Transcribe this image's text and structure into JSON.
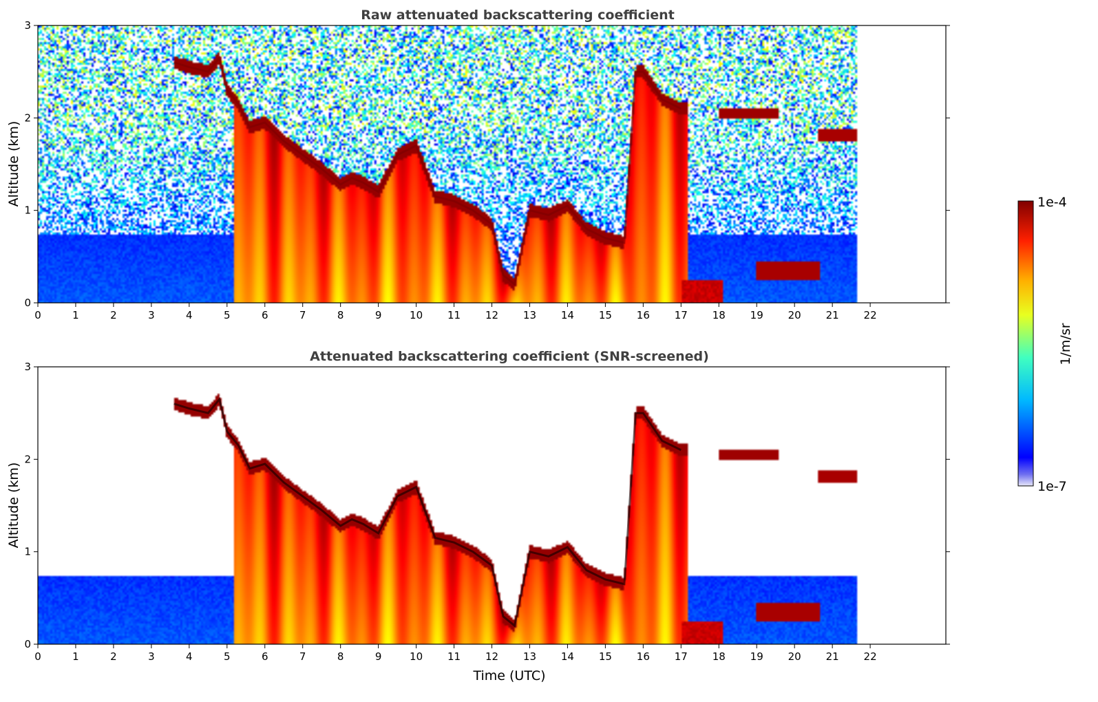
{
  "chart_data": [
    {
      "type": "heatmap",
      "title": "Raw attenuated backscattering coefficient",
      "xlabel": "",
      "ylabel": "Altitude (km)",
      "xlim": [
        0,
        24
      ],
      "ylim": [
        0,
        3
      ],
      "x_ticks": [
        0,
        1,
        2,
        3,
        4,
        5,
        6,
        7,
        8,
        9,
        10,
        11,
        12,
        13,
        14,
        15,
        16,
        17,
        18,
        19,
        20,
        21,
        22
      ],
      "y_ticks": [
        0,
        1,
        2,
        3
      ],
      "data_end_time": 21.65,
      "screened": false,
      "cloud_layer": {
        "time": [
          3.6,
          4.0,
          4.5,
          4.8,
          5.0,
          5.3,
          5.6,
          6.0,
          6.5,
          7.0,
          7.5,
          8.0,
          8.3,
          8.6,
          9.0,
          9.5,
          10.0,
          10.5,
          11.0,
          11.5,
          12.0,
          12.3,
          12.6,
          13.0,
          13.5,
          14.0,
          14.5,
          15.0,
          15.5,
          15.8,
          16.0,
          16.5,
          17.0
        ],
        "altitude_km": [
          2.6,
          2.55,
          2.5,
          2.65,
          2.3,
          2.15,
          1.9,
          1.95,
          1.75,
          1.6,
          1.45,
          1.28,
          1.35,
          1.3,
          1.2,
          1.6,
          1.7,
          1.15,
          1.1,
          1.0,
          0.85,
          0.3,
          0.2,
          1.0,
          0.95,
          1.05,
          0.8,
          0.7,
          0.65,
          2.5,
          2.5,
          2.2,
          2.1
        ]
      },
      "upper_cloud": {
        "time": [
          18.0,
          19.6
        ],
        "altitude_km": 2.05
      },
      "late_cloud": {
        "time": [
          20.6,
          21.65
        ],
        "altitude_km": 1.82
      },
      "low_layer": {
        "time": [
          19.0,
          20.7
        ],
        "altitude_km": 0.35
      }
    },
    {
      "type": "heatmap",
      "title": "Attenuated backscattering coefficient (SNR-screened)",
      "xlabel": "Time (UTC)",
      "ylabel": "Altitude (km)",
      "xlim": [
        0,
        24
      ],
      "ylim": [
        0,
        3
      ],
      "x_ticks": [
        0,
        1,
        2,
        3,
        4,
        5,
        6,
        7,
        8,
        9,
        10,
        11,
        12,
        13,
        14,
        15,
        16,
        17,
        18,
        19,
        20,
        21,
        22
      ],
      "y_ticks": [
        0,
        1,
        2,
        3
      ],
      "data_end_time": 21.65,
      "screened": true
    }
  ],
  "colorbar": {
    "max_label": "1e-4",
    "min_label": "1e-7",
    "unit_label": "1/m/sr",
    "colormap": "jet",
    "scale": "log"
  }
}
